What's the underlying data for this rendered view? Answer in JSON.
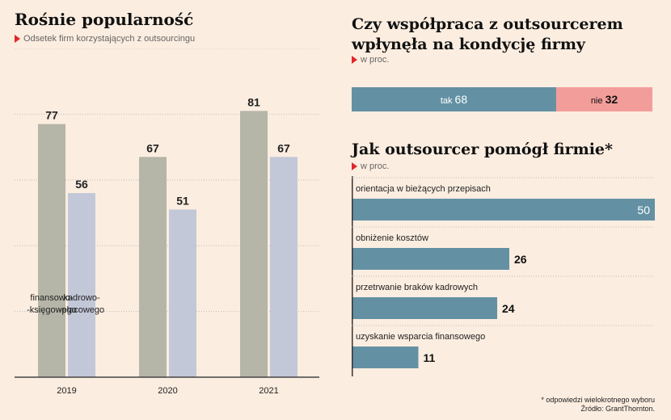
{
  "left_chart": {
    "title": "Rośnie popularność",
    "subtitle": "Odsetek firm korzystających z outsourcingu",
    "chart_data": {
      "type": "bar",
      "categories": [
        "2019",
        "2020",
        "2021"
      ],
      "series": [
        {
          "name": "finansowo-księgowego",
          "name_lines": [
            "finansowo-",
            "-księgowego"
          ],
          "values": [
            77,
            67,
            81
          ],
          "color": "#b5b5a8"
        },
        {
          "name": "kadrowo-płacowego",
          "name_lines": [
            "kadrowo-",
            "-płacowego"
          ],
          "values": [
            56,
            51,
            67
          ],
          "color": "#c2c8d8"
        }
      ],
      "ylim": [
        0,
        100
      ],
      "grid": true
    }
  },
  "top_right": {
    "title_lines": [
      "Czy współpraca z outsourcerem",
      "wpłynęła na kondycję firmy"
    ],
    "subtitle": "w proc.",
    "chart_data": {
      "type": "bar",
      "stacked": true,
      "segments": [
        {
          "label": "tak",
          "value": 68,
          "color": "#6391a3"
        },
        {
          "label": "nie",
          "value": 32,
          "color": "#f39d9b"
        }
      ]
    }
  },
  "bottom_right": {
    "title": "Jak outsourcer pomógł firmie*",
    "subtitle": "w proc.",
    "chart_data": {
      "type": "bar",
      "orientation": "horizontal",
      "categories": [
        "orientacja w bieżących przepisach",
        "obniżenie kosztów",
        "przetrwanie braków kadrowych",
        "uzyskanie wsparcia finansowego"
      ],
      "values": [
        50,
        26,
        24,
        11
      ],
      "xlim": [
        0,
        50
      ],
      "color": "#6391a3"
    }
  },
  "footnote": "* odpowiedzi wielokrotnego wyboru",
  "source": "Źródło: GrantThornton."
}
